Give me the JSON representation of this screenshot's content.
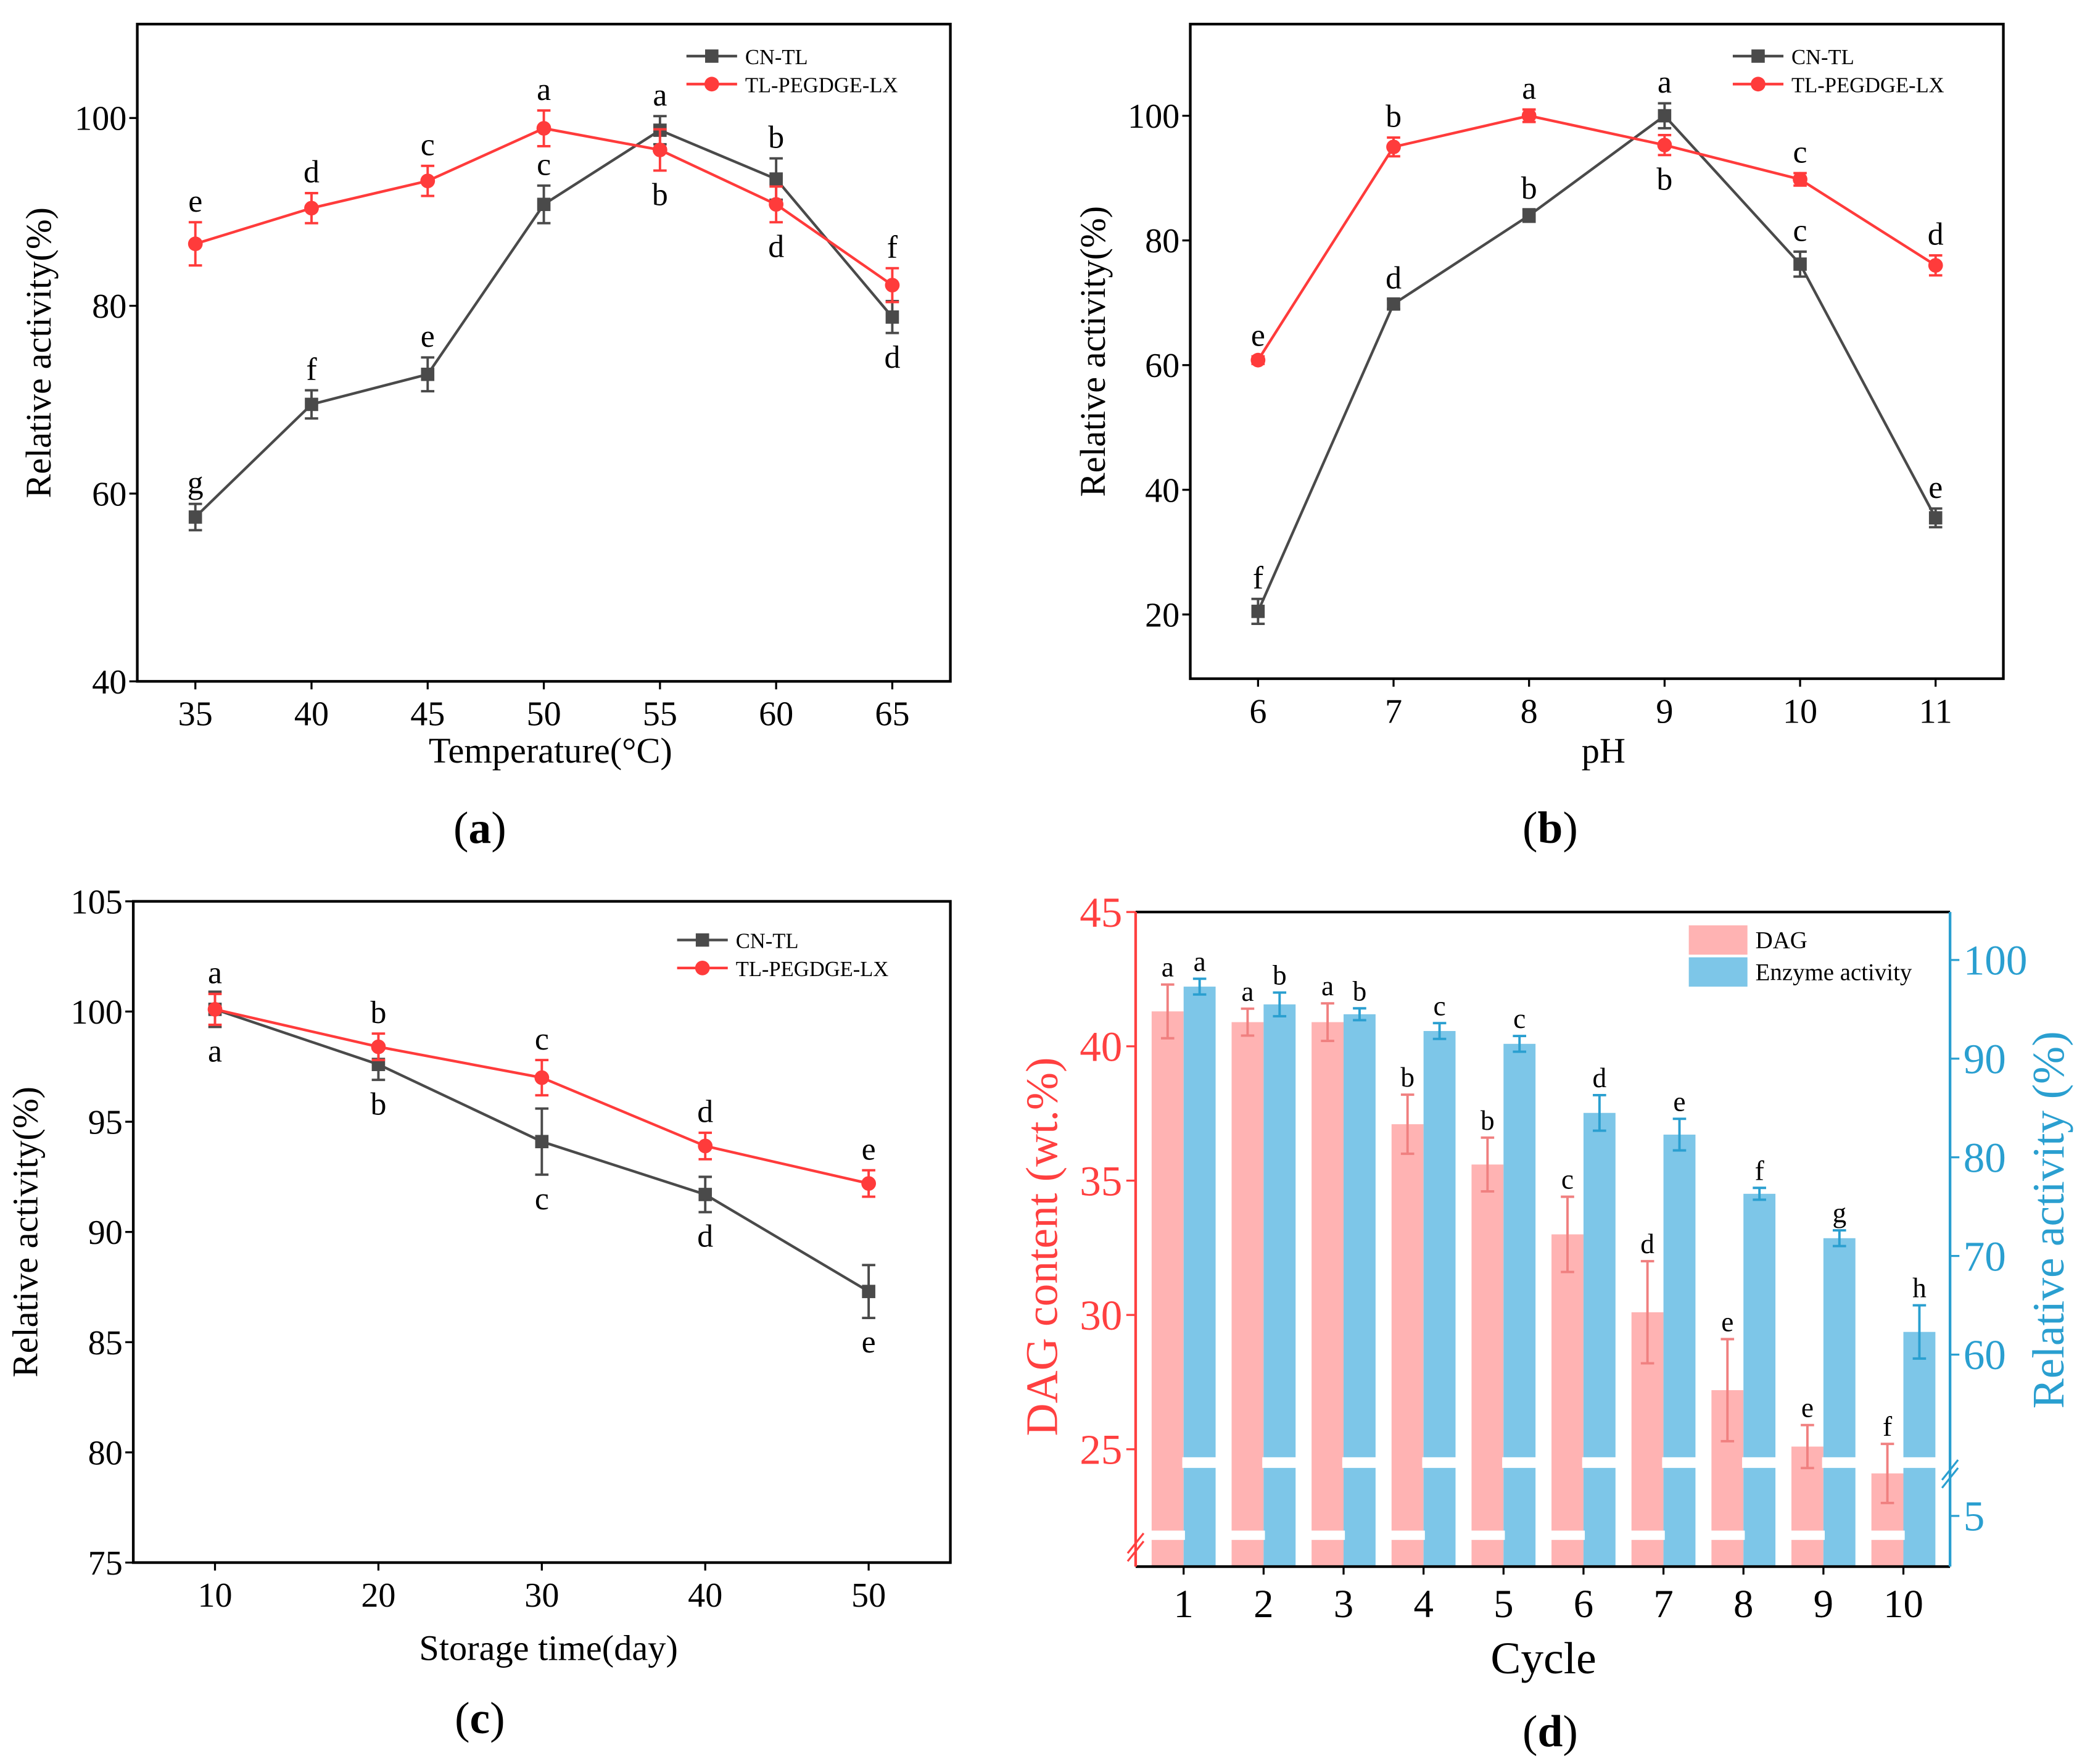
{
  "chart_data": [
    {
      "panel": "a",
      "type": "line",
      "xlabel": "Temperature(°C)",
      "ylabel": "Relative activity(%)",
      "xlim": [
        32.5,
        67.5
      ],
      "ylim": [
        40,
        110
      ],
      "xticks": [
        35,
        40,
        45,
        50,
        55,
        60,
        65
      ],
      "yticks": [
        40,
        60,
        80,
        100
      ],
      "legend_position": "top-right",
      "series": [
        {
          "name": "CN-TL",
          "color": "#4a4a4a",
          "marker": "square",
          "x": [
            35,
            40,
            45,
            50,
            55,
            60,
            65
          ],
          "y": [
            57.5,
            69.5,
            72.7,
            90.8,
            98.7,
            93.5,
            78.8
          ],
          "err": [
            1.4,
            1.5,
            1.8,
            2.0,
            1.5,
            2.2,
            1.7
          ],
          "letters": [
            "g",
            "f",
            "e",
            "c",
            "a",
            "b",
            "d"
          ],
          "letter_pos": [
            "above",
            "above",
            "above",
            "above",
            "above",
            "above",
            "below"
          ]
        },
        {
          "name": "TL-PEGDGE-LX",
          "color": "#ff3b3b",
          "marker": "circle",
          "x": [
            35,
            40,
            45,
            50,
            55,
            60,
            65
          ],
          "y": [
            86.6,
            90.4,
            93.3,
            98.9,
            96.6,
            90.8,
            82.2
          ],
          "err": [
            2.3,
            1.6,
            1.6,
            1.9,
            2.2,
            1.9,
            1.8
          ],
          "letters": [
            "e",
            "d",
            "c",
            "a",
            "b",
            "d",
            "f"
          ],
          "letter_pos": [
            "above",
            "above",
            "above",
            "above",
            "below",
            "below",
            "above"
          ]
        }
      ],
      "panel_label": "a"
    },
    {
      "panel": "b",
      "type": "line",
      "xlabel": "pH",
      "ylabel": "Relative activity(%)",
      "xlim": [
        5.5,
        11.5
      ],
      "ylim": [
        9.7,
        114.7
      ],
      "xticks": [
        6,
        7,
        8,
        9,
        10,
        11
      ],
      "yticks": [
        20,
        40,
        60,
        80,
        100
      ],
      "legend_position": "top-right",
      "series": [
        {
          "name": "CN-TL",
          "color": "#4a4a4a",
          "marker": "square",
          "x": [
            6,
            7,
            8,
            9,
            10,
            11
          ],
          "y": [
            20.5,
            69.8,
            84.0,
            100.0,
            76.2,
            35.5
          ],
          "err": [
            2.0,
            0.8,
            1.0,
            2.0,
            2.0,
            1.5
          ],
          "letters": [
            "f",
            "d",
            "b",
            "a",
            "c",
            "e"
          ],
          "letter_pos": [
            "above",
            "above",
            "above",
            "above",
            "above",
            "above"
          ]
        },
        {
          "name": "TL-PEGDGE-LX",
          "color": "#ff3b3b",
          "marker": "circle",
          "x": [
            6,
            7,
            8,
            9,
            10,
            11
          ],
          "y": [
            60.8,
            95.0,
            100.0,
            95.3,
            89.8,
            76.0
          ],
          "err": [
            0.6,
            1.5,
            1.0,
            1.6,
            1.0,
            1.6
          ],
          "letters": [
            "e",
            "b",
            "a",
            "b",
            "c",
            "d"
          ],
          "letter_pos": [
            "above",
            "above",
            "above",
            "below",
            "above",
            "above"
          ]
        }
      ],
      "panel_label": "b"
    },
    {
      "panel": "c",
      "type": "line",
      "xlabel": "Storage time(day)",
      "ylabel": "Relative activity(%)",
      "xlim": [
        5,
        55
      ],
      "ylim": [
        75,
        105
      ],
      "xticks": [
        10,
        20,
        30,
        40,
        50
      ],
      "yticks": [
        75,
        80,
        85,
        90,
        95,
        100,
        105
      ],
      "legend_position": "top-right",
      "series": [
        {
          "name": "CN-TL",
          "color": "#4a4a4a",
          "marker": "square",
          "x": [
            10,
            20,
            30,
            40,
            50
          ],
          "y": [
            100.1,
            97.6,
            94.1,
            91.7,
            87.3
          ],
          "err": [
            0.8,
            0.7,
            1.5,
            0.8,
            1.2
          ],
          "letters": [
            "a",
            "b",
            "c",
            "d",
            "e"
          ],
          "letter_pos": [
            "below",
            "below",
            "below",
            "below",
            "below"
          ]
        },
        {
          "name": "TL-PEGDGE-LX",
          "color": "#ff3b3b",
          "marker": "circle",
          "x": [
            10,
            20,
            30,
            40,
            50
          ],
          "y": [
            100.1,
            98.4,
            97.0,
            93.9,
            92.2
          ],
          "err": [
            0.7,
            0.6,
            0.8,
            0.6,
            0.6
          ],
          "letters": [
            "a",
            "b",
            "c",
            "d",
            "e"
          ],
          "letter_pos": [
            "above",
            "above",
            "above",
            "above",
            "above"
          ]
        }
      ],
      "panel_label": "c"
    },
    {
      "panel": "d",
      "type": "bar",
      "xlabel": "Cycle",
      "ylabel_left": "DAG content (wt.%)",
      "ylabel_right": "Relative activity (%)",
      "categories": [
        "1",
        "2",
        "3",
        "4",
        "5",
        "6",
        "7",
        "8",
        "9",
        "10"
      ],
      "ylim_left": [
        25,
        45
      ],
      "yticks_left": [
        25,
        30,
        35,
        40,
        45
      ],
      "ylim_right": [
        60,
        100
      ],
      "yticks_right": [
        60,
        70,
        80,
        90,
        100
      ],
      "yticks_right_below_break": [
        5
      ],
      "axis_break": true,
      "legend_position": "top-right",
      "series": [
        {
          "name": "DAG",
          "axis": "left",
          "color": "#ffb3b3",
          "err_color": "#f08080",
          "values": [
            41.3,
            40.9,
            40.9,
            37.1,
            35.6,
            33.0,
            30.1,
            27.2,
            25.1,
            24.1
          ],
          "err": [
            1.0,
            0.5,
            0.7,
            1.1,
            1.0,
            1.4,
            1.9,
            1.9,
            0.8,
            1.1
          ],
          "letters": [
            "a",
            "a",
            "a",
            "b",
            "b",
            "c",
            "d",
            "e",
            "e",
            "f"
          ]
        },
        {
          "name": "Enzyme activity",
          "axis": "right",
          "color": "#7dc6e8",
          "err_color": "#2a9fd0",
          "values": [
            97.3,
            95.5,
            94.5,
            92.8,
            91.5,
            84.5,
            82.3,
            76.3,
            71.8,
            62.3
          ],
          "err": [
            0.8,
            1.2,
            0.6,
            0.8,
            0.8,
            1.8,
            1.6,
            0.6,
            0.8,
            2.7
          ],
          "letters": [
            "a",
            "b",
            "b",
            "c",
            "c",
            "d",
            "e",
            "f",
            "g",
            "h"
          ]
        }
      ],
      "left_axis_color": "#ff4040",
      "right_axis_color": "#2a9fd0",
      "panel_label": "d"
    }
  ]
}
